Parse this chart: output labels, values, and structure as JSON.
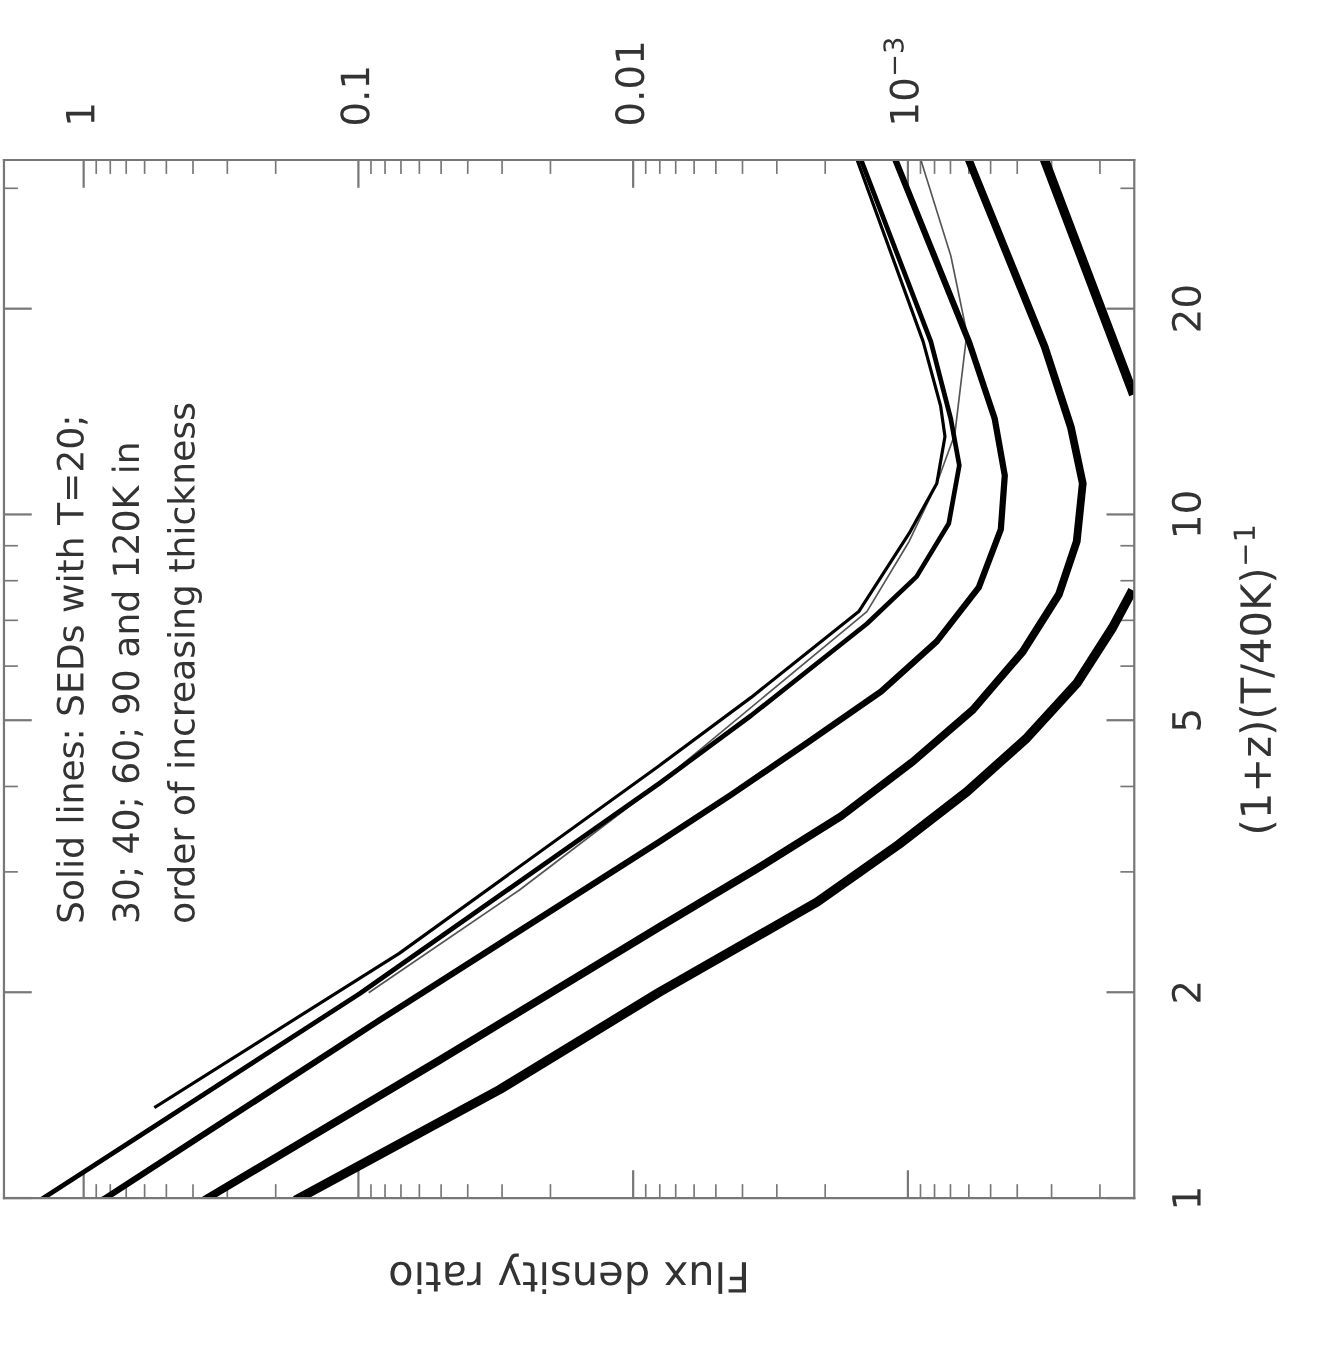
{
  "chart_data": {
    "type": "line",
    "xlabel": "Flux density ratio",
    "ylabel": "(1+z)(T/40K)$^{−1}$",
    "annotations": [
      "Solid lines: SEDs with T=20;\n30; 40; 60; 90 and 120K in\norder of increasing thickness"
    ],
    "log": "xy",
    "xlim": [
      1.95,
      0.00015
    ],
    "ylim": [
      1,
      33
    ],
    "xticks": [
      1,
      0.1,
      0.01,
      {
        "value": 0.001,
        "label": "10$^{−3}$"
      }
    ],
    "yticks": [
      1,
      2,
      5,
      10,
      20
    ],
    "grid": false,
    "legend": false,
    "marker": "none",
    "line_style": "solid",
    "series": [
      {
        "color": "#555555",
        "x": [
          0.0912,
          0.026,
          0.00804,
          0.00141,
          0.00099,
          0.000785,
          0.000675,
          0.00061,
          0.000698,
          0.000897
        ],
        "values": [
          2.0,
          2.82,
          4.04,
          7.21,
          9.13,
          11.1,
          13.1,
          18.4,
          23.9,
          33
        ]
      },
      {
        "color": "#000000",
        "x": [
          0.547,
          0.071,
          0.00804,
          0.00372,
          0.00151,
          0.00099,
          0.000785,
          0.000733,
          0.00076,
          0.00088,
          0.00153
        ],
        "values": [
          1.36,
          2.28,
          4.29,
          5.4,
          7.21,
          9.38,
          11.1,
          13.0,
          14.4,
          17.9,
          33
        ]
      },
      {
        "color": "#000000",
        "x": [
          1.4,
          0.0991,
          0.00804,
          0.00372,
          0.00141,
          0.00093,
          0.00071,
          0.00065,
          0.000698,
          0.000825,
          0.00148
        ],
        "values": [
          1,
          1.99,
          4.04,
          5.08,
          6.92,
          8.11,
          9.7,
          11.8,
          13.8,
          17.9,
          33
        ]
      },
      {
        "color": "#000000",
        "x": [
          0.832,
          0.0839,
          0.00804,
          0.0044,
          0.00237,
          0.00125,
          0.000785,
          0.000552,
          0.000459,
          0.000444,
          0.000483,
          0.0006,
          0.00111
        ],
        "values": [
          1,
          1.82,
          3.32,
          3.89,
          4.61,
          5.51,
          6.52,
          7.82,
          9.51,
          11.4,
          13.8,
          17.9,
          33
        ]
      },
      {
        "color": "#000000",
        "x": [
          0.354,
          0.0508,
          0.00804,
          0.0036,
          0.00175,
          0.00096,
          0.00058,
          0.000382,
          0.000282,
          0.000243,
          0.000231,
          0.000255,
          0.000318,
          0.0006
        ],
        "values": [
          1,
          1.59,
          2.49,
          3.02,
          3.62,
          4.35,
          5.18,
          6.3,
          7.64,
          9.13,
          11.1,
          13.4,
          17.6,
          33
        ]
      },
      {
        "color": "#000000",
        "x": [
          0.164,
          0.0307,
          0.00804,
          0.00214,
          0.00108,
          0.00061,
          0.000369,
          0.000243,
          0.00018,
          0.000155,
          null,
          0.000153,
          0.000318
        ],
        "values": [
          1,
          1.44,
          2.0,
          2.71,
          3.29,
          3.93,
          4.71,
          5.66,
          6.83,
          7.64,
          null,
          15.2,
          33
        ]
      }
    ]
  }
}
